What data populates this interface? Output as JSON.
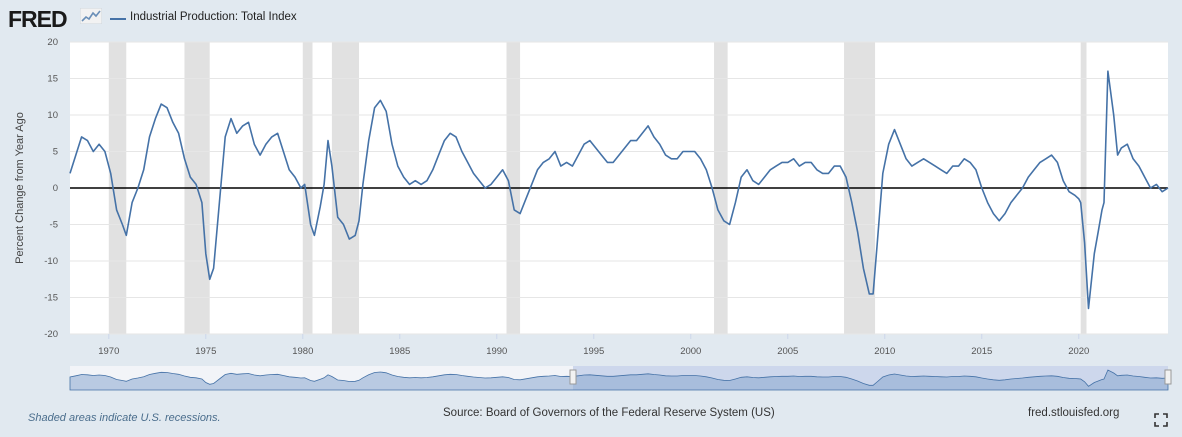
{
  "brand": {
    "logo_text": "FRED",
    "logo_icon": "fred-chart-icon"
  },
  "legend": {
    "label": "Industrial Production: Total Index",
    "color": "#4572a7"
  },
  "footer": {
    "recession_note": "Shaded areas indicate U.S. recessions.",
    "source": "Source: Board of Governors of the Federal Reserve System (US)",
    "url": "fred.stlouisfed.org",
    "fullscreen_icon": "fullscreen-icon"
  },
  "colors": {
    "line": "#4572a7",
    "recession": "#e1e1e1",
    "navigator_fill": "#8aa7cf",
    "navigator_selection": "#c3cfe8",
    "background": "#e1e9f0"
  },
  "chart_data": {
    "type": "line",
    "title": "",
    "xlabel": "",
    "ylabel": "Percent Change from Year Ago",
    "ylim": [
      -20,
      20
    ],
    "xlim": [
      1968.0,
      2024.6
    ],
    "y_ticks": [
      20,
      15,
      10,
      5,
      0,
      -5,
      -10,
      -15,
      -20
    ],
    "x_ticks": [
      1970,
      1975,
      1980,
      1985,
      1990,
      1995,
      2000,
      2005,
      2010,
      2015,
      2020
    ],
    "grid": "horizontal",
    "zero_line": true,
    "recessions": [
      [
        1970.0,
        1970.9
      ],
      [
        1973.9,
        1975.2
      ],
      [
        1980.0,
        1980.5
      ],
      [
        1981.5,
        1982.9
      ],
      [
        1990.5,
        1991.2
      ],
      [
        2001.2,
        2001.9
      ],
      [
        2007.9,
        2009.5
      ],
      [
        2020.1,
        2020.4
      ]
    ],
    "series": [
      {
        "name": "Industrial Production: Total Index",
        "x": [
          1968.0,
          1968.3,
          1968.6,
          1968.9,
          1969.2,
          1969.5,
          1969.8,
          1970.1,
          1970.4,
          1970.7,
          1970.9,
          1971.2,
          1971.5,
          1971.8,
          1972.1,
          1972.4,
          1972.7,
          1973.0,
          1973.3,
          1973.6,
          1973.9,
          1974.2,
          1974.5,
          1974.8,
          1975.0,
          1975.2,
          1975.4,
          1975.7,
          1976.0,
          1976.3,
          1976.6,
          1976.9,
          1977.2,
          1977.5,
          1977.8,
          1978.1,
          1978.4,
          1978.7,
          1979.0,
          1979.3,
          1979.6,
          1979.9,
          1980.1,
          1980.4,
          1980.6,
          1980.9,
          1981.1,
          1981.3,
          1981.5,
          1981.8,
          1982.1,
          1982.4,
          1982.7,
          1982.9,
          1983.1,
          1983.4,
          1983.7,
          1984.0,
          1984.3,
          1984.6,
          1984.9,
          1985.2,
          1985.5,
          1985.8,
          1986.1,
          1986.4,
          1986.7,
          1987.0,
          1987.3,
          1987.6,
          1987.9,
          1988.2,
          1988.5,
          1988.8,
          1989.1,
          1989.4,
          1989.7,
          1990.0,
          1990.3,
          1990.6,
          1990.9,
          1991.2,
          1991.5,
          1991.8,
          1992.1,
          1992.4,
          1992.7,
          1993.0,
          1993.3,
          1993.6,
          1993.9,
          1994.2,
          1994.5,
          1994.8,
          1995.1,
          1995.4,
          1995.7,
          1996.0,
          1996.3,
          1996.6,
          1996.9,
          1997.2,
          1997.5,
          1997.8,
          1998.1,
          1998.4,
          1998.7,
          1999.0,
          1999.3,
          1999.6,
          1999.9,
          2000.2,
          2000.5,
          2000.8,
          2001.1,
          2001.4,
          2001.7,
          2002.0,
          2002.3,
          2002.6,
          2002.9,
          2003.2,
          2003.5,
          2003.8,
          2004.1,
          2004.4,
          2004.7,
          2005.0,
          2005.3,
          2005.6,
          2005.9,
          2006.2,
          2006.5,
          2006.8,
          2007.1,
          2007.4,
          2007.7,
          2008.0,
          2008.3,
          2008.6,
          2008.9,
          2009.2,
          2009.4,
          2009.6,
          2009.9,
          2010.2,
          2010.5,
          2010.8,
          2011.1,
          2011.4,
          2011.7,
          2012.0,
          2012.3,
          2012.6,
          2012.9,
          2013.2,
          2013.5,
          2013.8,
          2014.1,
          2014.4,
          2014.7,
          2015.0,
          2015.3,
          2015.6,
          2015.9,
          2016.2,
          2016.5,
          2016.8,
          2017.1,
          2017.4,
          2017.7,
          2018.0,
          2018.3,
          2018.6,
          2018.9,
          2019.2,
          2019.5,
          2019.8,
          2020.0,
          2020.1,
          2020.3,
          2020.5,
          2020.8,
          2021.0,
          2021.2,
          2021.3,
          2021.5,
          2021.8,
          2022.0,
          2022.2,
          2022.5,
          2022.8,
          2023.1,
          2023.4,
          2023.7,
          2024.0,
          2024.3,
          2024.6
        ],
        "values": [
          2.0,
          4.5,
          7.0,
          6.5,
          5.0,
          6.0,
          5.0,
          2.0,
          -3.0,
          -5.0,
          -6.5,
          -2.0,
          0.0,
          2.5,
          7.0,
          9.5,
          11.5,
          11.0,
          9.0,
          7.5,
          4.0,
          1.5,
          0.5,
          -2.0,
          -9.0,
          -12.5,
          -11.0,
          -2.0,
          7.0,
          9.5,
          7.5,
          8.5,
          9.0,
          6.0,
          4.5,
          6.0,
          7.0,
          7.5,
          5.0,
          2.5,
          1.5,
          0.0,
          0.5,
          -5.0,
          -6.5,
          -2.5,
          0.5,
          6.5,
          3.0,
          -4.0,
          -5.0,
          -7.0,
          -6.5,
          -4.5,
          0.5,
          6.5,
          11.0,
          12.0,
          10.5,
          6.0,
          3.0,
          1.5,
          0.5,
          1.0,
          0.5,
          1.0,
          2.5,
          4.5,
          6.5,
          7.5,
          7.0,
          5.0,
          3.5,
          2.0,
          1.0,
          0.0,
          0.5,
          1.5,
          2.5,
          1.0,
          -3.0,
          -3.5,
          -1.5,
          0.5,
          2.5,
          3.5,
          4.0,
          5.0,
          3.0,
          3.5,
          3.0,
          4.5,
          6.0,
          6.5,
          5.5,
          4.5,
          3.5,
          3.5,
          4.5,
          5.5,
          6.5,
          6.5,
          7.5,
          8.5,
          7.0,
          6.0,
          4.5,
          4.0,
          4.0,
          5.0,
          5.0,
          5.0,
          4.0,
          2.5,
          0.0,
          -3.0,
          -4.5,
          -5.0,
          -2.0,
          1.5,
          2.5,
          1.0,
          0.5,
          1.5,
          2.5,
          3.0,
          3.5,
          3.5,
          4.0,
          3.0,
          3.5,
          3.5,
          2.5,
          2.0,
          2.0,
          3.0,
          3.0,
          1.5,
          -2.0,
          -6.0,
          -11.0,
          -14.5,
          -14.5,
          -8.0,
          2.0,
          6.0,
          8.0,
          6.0,
          4.0,
          3.0,
          3.5,
          4.0,
          3.5,
          3.0,
          2.5,
          2.0,
          3.0,
          3.0,
          4.0,
          3.5,
          2.5,
          0.0,
          -2.0,
          -3.5,
          -4.5,
          -3.5,
          -2.0,
          -1.0,
          0.0,
          1.5,
          2.5,
          3.5,
          4.0,
          4.5,
          3.5,
          1.0,
          -0.5,
          -1.0,
          -1.5,
          -2.0,
          -7.5,
          -16.5,
          -9.0,
          -6.0,
          -3.0,
          -2.0,
          16.0,
          10.0,
          4.5,
          5.5,
          6.0,
          4.0,
          3.0,
          1.5,
          0.0,
          0.5,
          -0.5,
          0.0
        ]
      }
    ]
  }
}
